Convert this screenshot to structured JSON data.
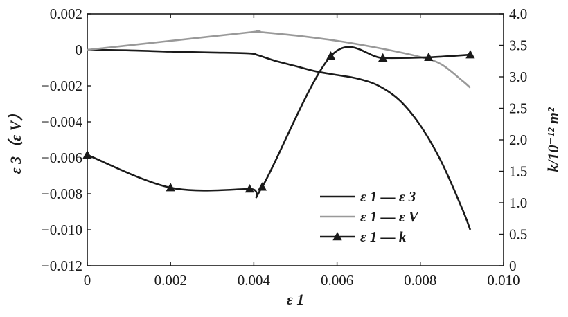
{
  "chart_data": {
    "type": "line",
    "x_axis": {
      "label": "ε 1",
      "range": [
        0,
        0.01
      ],
      "ticks": [
        0,
        0.002,
        0.004,
        0.006,
        0.008,
        0.01
      ],
      "tick_labels": [
        "0",
        "0.002",
        "0.004",
        "0.006",
        "0.008",
        "0.010"
      ]
    },
    "y_left": {
      "label": "ε 3（ε V）",
      "range": [
        -0.012,
        0.002
      ],
      "ticks": [
        0.002,
        0,
        -0.002,
        -0.004,
        -0.006,
        -0.008,
        -0.01,
        -0.012
      ],
      "tick_labels": [
        "0.002",
        "0",
        "−0.002",
        "−0.004",
        "−0.006",
        "−0.008",
        "−0.010",
        "−0.012"
      ]
    },
    "y_right": {
      "label": "k/10⁻¹² m²",
      "range": [
        0,
        4.0
      ],
      "ticks": [
        4.0,
        3.5,
        3.0,
        2.5,
        2.0,
        1.5,
        1.0,
        0.5,
        0
      ],
      "tick_labels": [
        "4.0",
        "3.5",
        "3.0",
        "2.5",
        "2.0",
        "1.5",
        "1.0",
        "0.5",
        "0"
      ]
    },
    "grid": false,
    "legend_position": "lower-right",
    "series": [
      {
        "name": "ε 1 — ε 3",
        "axis": "left",
        "color": "#1a1a1a",
        "marker": "none",
        "x": [
          0,
          0.001,
          0.002,
          0.003,
          0.0039,
          0.0041,
          0.0045,
          0.005,
          0.0055,
          0.006,
          0.0065,
          0.007,
          0.0075,
          0.008,
          0.0085,
          0.009,
          0.0092
        ],
        "y": [
          0,
          -3e-05,
          -0.0001,
          -0.00015,
          -0.0002,
          -0.0003,
          -0.0006,
          -0.0009,
          -0.0012,
          -0.0014,
          -0.0016,
          -0.002,
          -0.0028,
          -0.0042,
          -0.0062,
          -0.0088,
          -0.01
        ]
      },
      {
        "name": "ε 1 — ε V",
        "axis": "left",
        "color": "#999999",
        "marker": "none",
        "x": [
          0,
          0.002,
          0.004,
          0.0041,
          0.005,
          0.006,
          0.007,
          0.008,
          0.0085,
          0.009,
          0.0092
        ],
        "y": [
          0,
          0.0005,
          0.001,
          0.001,
          0.0008,
          0.0005,
          0.0001,
          -0.0004,
          -0.0008,
          -0.0017,
          -0.0021
        ]
      },
      {
        "name": "ε 1 — k",
        "axis": "right",
        "color": "#1a1a1a",
        "marker": "triangle",
        "x": [
          0,
          0.002,
          0.0039,
          0.0042,
          0.00585,
          0.0071,
          0.0082,
          0.0092
        ],
        "y": [
          1.76,
          1.24,
          1.22,
          1.25,
          3.33,
          3.3,
          3.31,
          3.35
        ]
      }
    ]
  }
}
